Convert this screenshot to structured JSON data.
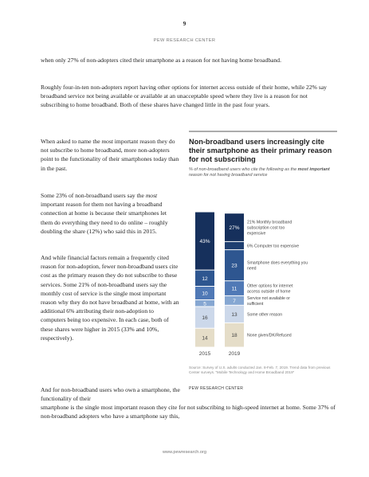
{
  "page": {
    "number": "9",
    "header": "PEW RESEARCH CENTER",
    "footer": "www.pewresearch.org"
  },
  "paragraphs": {
    "p1": "when only 27% of non-adopters cited their smartphone as a reason for not having home broadband.",
    "p2": "Roughly four-in-ten non-adopters report having other options for internet access outside of their home, while 22% say broadband service not being available or available at an unacceptable speed where they live is a reason for not subscribing to home broadband. Both of these shares have changed little in the past four years.",
    "p3_a": "When asked to name the ",
    "p3_em": "most",
    "p3_b": " important reason they do not subscribe to home broadband, more non-adopters point to the functionality of their smartphones today than in the past.",
    "p4_a": "Some 23% of non-broadband users say the ",
    "p4_em": "most",
    "p4_b": " important reason for them not having a broadband connection at home is because their smartphones let them do everything they need to do online – roughly doubling the share (12%) who said this in 2015.",
    "p5": "And while financial factors remain a frequently cited reason for non-adoption, fewer non-broadband users cite cost as the primary reason they do not subscribe to these services. Some 21% of non-broadband users say the monthly cost of service is the single most important reason why they do not have broadband at home, with an additional 6% attributing their non-adoption to computers being too expensive. In each case, both of these shares were higher in 2015 (33% and 10%, respectively).",
    "p6_a": "And for non-broadband users who own a smartphone, the functionality of their",
    "p6_b": "smartphone is the single most important reason they cite for not subscribing to high-speed internet at home. Some 37% of non-broadband adopters who have a smartphone say this,"
  },
  "chart_header": {
    "title": "Non-broadband users increasingly cite their smartphone as their primary reason for not subscribing",
    "subtitle_a": "% of non-broadband users who cite the following as the ",
    "subtitle_b": "most important",
    "subtitle_c": " reason for not having broadband service",
    "source": "Source: Survey of U.S. adults conducted Jan. 8-Feb. 7, 2019. Trend data from previous Center surveys. “Mobile Technology and Home Broadband 2019”",
    "org": "PEW RESEARCH CENTER"
  },
  "chart_data": {
    "type": "bar",
    "stacked": true,
    "categories": [
      "2015",
      "2019"
    ],
    "series": [
      {
        "name": "None given/DK/Refused",
        "values": [
          14,
          18
        ],
        "color": "#e5ddc8"
      },
      {
        "name": "Some other reason",
        "values": [
          16,
          13
        ],
        "color": "#ccd8ea"
      },
      {
        "name": "Service not available or sufficient",
        "values": [
          5,
          7
        ],
        "color": "#86a7d2"
      },
      {
        "name": "Other options for internet access outside of home",
        "values": [
          10,
          11
        ],
        "color": "#5079b6"
      },
      {
        "name": "Smartphone does everything you need",
        "values": [
          12,
          23
        ],
        "color": "#2e5690"
      },
      {
        "name": "6% Computer too expensive",
        "values": [
          null,
          6
        ],
        "color": "#1f3f70"
      },
      {
        "name": "21% Monthly broadband subscription cost too expensive",
        "values": [
          43,
          21
        ],
        "color": "#16305c"
      }
    ],
    "value_labels": [
      [
        "14",
        "18"
      ],
      [
        "16",
        "13"
      ],
      [
        "5",
        "7"
      ],
      [
        "10",
        "11"
      ],
      [
        "12",
        "23"
      ],
      [
        "",
        ""
      ],
      [
        "43%",
        "27%"
      ]
    ],
    "legend_labels": [
      "None given/DK/Refused",
      "Some other reason",
      "Service not available or sufficient",
      "Other options for internet access outside of home",
      "Smartphone does everything you need",
      "6% Computer too expensive",
      "21% Monthly broadband subscription cost too expensive"
    ]
  }
}
